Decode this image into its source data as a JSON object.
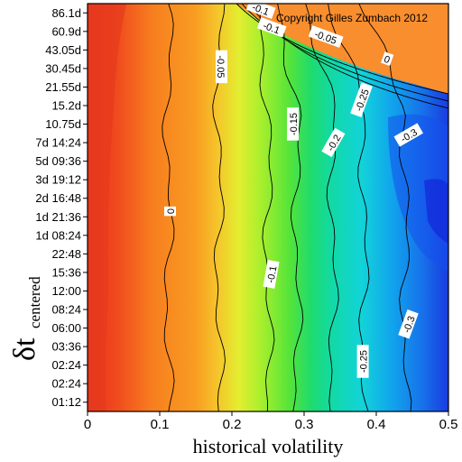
{
  "chart_data": {
    "type": "heatmap",
    "xlabel": "historical volatility",
    "ylabel_main": "δt",
    "ylabel_sub": "centered",
    "copyright": "Copyright Gilles Zumbach 2012",
    "xlim": [
      0,
      0.5
    ],
    "x_ticks": [
      "0",
      "0.1",
      "0.2",
      "0.3",
      "0.4",
      "0.5"
    ],
    "y_ticks": [
      "86.1d",
      "60.9d",
      "43.05d",
      "30.45d",
      "21.55d",
      "15.2d",
      "10.75d",
      "7d 14:24",
      "5d 09:36",
      "3d 19:12",
      "2d 16:48",
      "1d 21:36",
      "1d 08:24",
      "22:48",
      "15:36",
      "12:00",
      "08:24",
      "06:00",
      "03:36",
      "02:24",
      "02:24",
      "01:12"
    ],
    "contour_levels": [
      {
        "label": "0",
        "x": 0.112
      },
      {
        "label": "-0.05",
        "x": 0.182
      },
      {
        "label": "-0.1",
        "x": 0.25
      },
      {
        "label": "-0.15",
        "x": 0.29
      },
      {
        "label": "-0.2",
        "x": 0.34
      },
      {
        "label": "-0.25",
        "x": 0.383
      },
      {
        "label": "-0.3",
        "x": 0.44
      }
    ],
    "contour_labels": [
      {
        "text": "0",
        "x": 0.115,
        "y_index": 11.2,
        "angle": -90
      },
      {
        "text": "-0.05",
        "x": 0.185,
        "y_index": 3.4,
        "angle": 90
      },
      {
        "text": "-0.1",
        "x": 0.255,
        "y_index": 14.6,
        "angle": -80
      },
      {
        "text": "-0.15",
        "x": 0.285,
        "y_index": 6.5,
        "angle": -90
      },
      {
        "text": "-0.2",
        "x": 0.341,
        "y_index": 7.5,
        "angle": -60
      },
      {
        "text": "-0.25",
        "x": 0.38,
        "y_index": 5.2,
        "angle": -70
      },
      {
        "text": "-0.3",
        "x": 0.445,
        "y_index": 7.1,
        "angle": -30
      },
      {
        "text": "-0.25",
        "x": 0.382,
        "y_index": 19.3,
        "angle": -90
      },
      {
        "text": "-0.3",
        "x": 0.445,
        "y_index": 17.3,
        "angle": -70
      },
      {
        "text": "-0.1",
        "x": 0.24,
        "y_index": 0.3,
        "angle": 20
      },
      {
        "text": "-0.1",
        "x": 0.255,
        "y_index": 1.3,
        "angle": 20
      },
      {
        "text": "-0.05",
        "x": 0.33,
        "y_index": 1.8,
        "angle": 20
      },
      {
        "text": "0",
        "x": 0.415,
        "y_index": 3.0,
        "angle": 20
      }
    ],
    "colormap": [
      "#e8321e",
      "#f4621c",
      "#f98a1e",
      "#fbb12a",
      "#f2e62f",
      "#b7ef2c",
      "#4fe33b",
      "#10d98a",
      "#12d7d0",
      "#11a6ec",
      "#1464e9",
      "#1326d8"
    ],
    "colors": {
      "orange_region": "#f98e2e"
    }
  }
}
